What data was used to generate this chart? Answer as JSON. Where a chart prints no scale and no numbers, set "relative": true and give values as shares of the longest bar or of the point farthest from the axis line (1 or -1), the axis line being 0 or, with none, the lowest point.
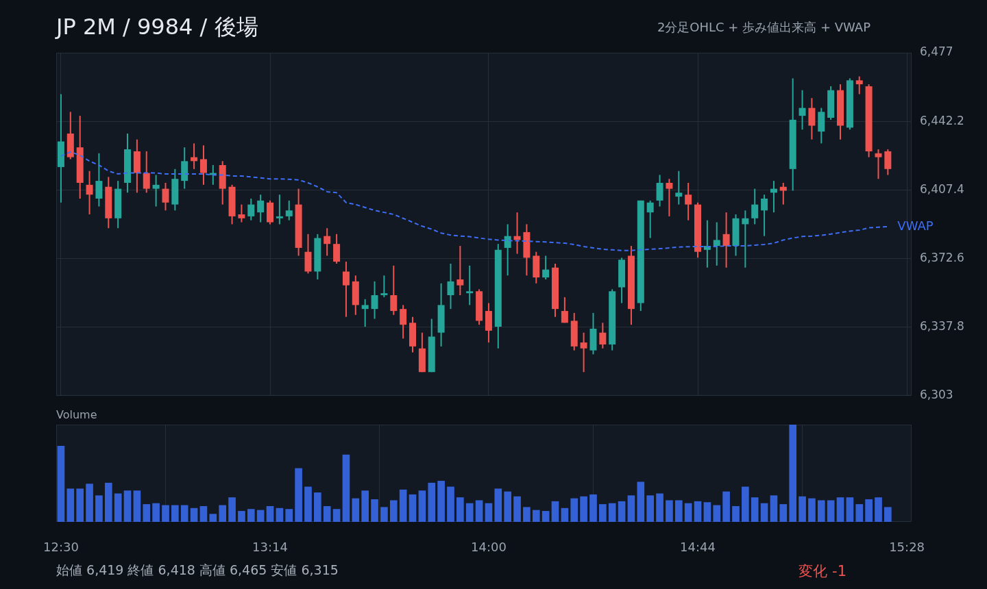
{
  "chart_data": [
    {
      "type": "candlestick",
      "title": "JP 2M / 9984 / 後場",
      "subtitle": "2分足OHLC + 歩み値出来高 + VWAP",
      "x": [
        12.5,
        12.5333,
        12.5667,
        12.6,
        12.6333,
        12.6667,
        12.7,
        12.7333,
        12.7667,
        12.8,
        12.8333,
        12.8667,
        12.9,
        12.9333,
        12.9667,
        13,
        13.0333,
        13.0667,
        13.1,
        13.1333,
        13.1667,
        13.2,
        13.2333,
        13.2667,
        13.3,
        13.3333,
        13.3667,
        13.4,
        13.4333,
        13.4667,
        13.5,
        13.5333,
        13.5667,
        13.6,
        13.6333,
        13.6667,
        13.7,
        13.7333,
        13.7667,
        13.8,
        13.8333,
        13.8667,
        13.9,
        13.9333,
        13.9667,
        14,
        14.0333,
        14.0667,
        14.1,
        14.1333,
        14.1667,
        14.2,
        14.2333,
        14.2667,
        14.3,
        14.3333,
        14.3667,
        14.4,
        14.4333,
        14.4667,
        14.5,
        14.5333,
        14.5667,
        14.6,
        14.6333,
        14.6667,
        14.7,
        14.7333,
        14.7667,
        14.8,
        14.8333,
        14.8667,
        14.9,
        14.9333,
        14.9667,
        15,
        15.0333,
        15.0667,
        15.1,
        15.1333,
        15.1667,
        15.2,
        15.2333,
        15.2667,
        15.3,
        15.3333,
        15.3667,
        15.4
      ],
      "ohlc": [
        [
          6419,
          6456,
          6401,
          6432
        ],
        [
          6436,
          6447,
          6423,
          6424
        ],
        [
          6429,
          6445,
          6403,
          6411
        ],
        [
          6410,
          6417,
          6395,
          6405
        ],
        [
          6403,
          6426,
          6399,
          6412
        ],
        [
          6409,
          6414,
          6388,
          6393
        ],
        [
          6393,
          6412,
          6388,
          6408
        ],
        [
          6411,
          6436,
          6406,
          6428
        ],
        [
          6427,
          6433,
          6406,
          6416
        ],
        [
          6416,
          6427,
          6406,
          6408
        ],
        [
          6408,
          6415,
          6399,
          6410
        ],
        [
          6408,
          6411,
          6397,
          6401
        ],
        [
          6400,
          6418,
          6397,
          6413
        ],
        [
          6412,
          6429,
          6408,
          6422
        ],
        [
          6424,
          6431,
          6418,
          6422
        ],
        [
          6423,
          6430,
          6410,
          6416
        ],
        [
          6415,
          6420,
          6410,
          6416
        ],
        [
          6420,
          6422,
          6400,
          6408
        ],
        [
          6409,
          6410,
          6390,
          6394
        ],
        [
          6395,
          6400,
          6391,
          6393
        ],
        [
          6394,
          6403,
          6392,
          6400
        ],
        [
          6396,
          6405,
          6391,
          6402
        ],
        [
          6401,
          6402,
          6390,
          6391
        ],
        [
          6393,
          6405,
          6390,
          6394
        ],
        [
          6394,
          6402,
          6392,
          6397
        ],
        [
          6400,
          6408,
          6374,
          6378
        ],
        [
          6376,
          6385,
          6365,
          6366
        ],
        [
          6366,
          6385,
          6362,
          6383
        ],
        [
          6384,
          6388,
          6374,
          6380
        ],
        [
          6380,
          6385,
          6370,
          6371
        ],
        [
          6366,
          6371,
          6343,
          6359
        ],
        [
          6361,
          6364,
          6344,
          6349
        ],
        [
          6347,
          6352,
          6338,
          6349
        ],
        [
          6347,
          6361,
          6342,
          6354
        ],
        [
          6354,
          6364,
          6353,
          6355
        ],
        [
          6354,
          6369,
          6344,
          6346
        ],
        [
          6347,
          6349,
          6332,
          6339
        ],
        [
          6340,
          6343,
          6325,
          6328
        ],
        [
          6327,
          6335,
          6315,
          6315
        ],
        [
          6315,
          6342,
          6315,
          6333
        ],
        [
          6335,
          6360,
          6328,
          6349
        ],
        [
          6354,
          6370,
          6347,
          6361
        ],
        [
          6362,
          6379,
          6354,
          6359
        ],
        [
          6355,
          6369,
          6349,
          6356
        ],
        [
          6356,
          6357,
          6339,
          6341
        ],
        [
          6346,
          6350,
          6330,
          6336
        ],
        [
          6338,
          6380,
          6327,
          6377
        ],
        [
          6378,
          6390,
          6364,
          6384
        ],
        [
          6384,
          6396,
          6375,
          6382
        ],
        [
          6386,
          6390,
          6364,
          6373
        ],
        [
          6374,
          6376,
          6360,
          6363
        ],
        [
          6363,
          6374,
          6362,
          6367
        ],
        [
          6368,
          6370,
          6343,
          6347
        ],
        [
          6346,
          6353,
          6340,
          6340
        ],
        [
          6341,
          6345,
          6326,
          6328
        ],
        [
          6330,
          6335,
          6315,
          6327
        ],
        [
          6326,
          6345,
          6324,
          6337
        ],
        [
          6335,
          6340,
          6327,
          6329
        ],
        [
          6329,
          6357,
          6326,
          6356
        ],
        [
          6358,
          6373,
          6350,
          6372
        ],
        [
          6374,
          6379,
          6339,
          6347
        ],
        [
          6350,
          6402,
          6346,
          6402
        ],
        [
          6396,
          6402,
          6383,
          6401
        ],
        [
          6402,
          6415,
          6399,
          6411
        ],
        [
          6411,
          6413,
          6394,
          6408
        ],
        [
          6404,
          6417,
          6400,
          6406
        ],
        [
          6405,
          6411,
          6392,
          6400
        ],
        [
          6400,
          6401,
          6373,
          6376
        ],
        [
          6377,
          6392,
          6368,
          6379
        ],
        [
          6379,
          6391,
          6369,
          6382
        ],
        [
          6385,
          6396,
          6368,
          6379
        ],
        [
          6379,
          6395,
          6374,
          6393
        ],
        [
          6390,
          6397,
          6368,
          6393
        ],
        [
          6393,
          6408,
          6390,
          6400
        ],
        [
          6397,
          6405,
          6384,
          6403
        ],
        [
          6406,
          6412,
          6396,
          6408
        ],
        [
          6409,
          6411,
          6400,
          6407
        ],
        [
          6418,
          6464,
          6407,
          6443
        ],
        [
          6445,
          6458,
          6438,
          6449
        ],
        [
          6449,
          6454,
          6433,
          6440
        ],
        [
          6437,
          6449,
          6431,
          6447
        ],
        [
          6444,
          6460,
          6443,
          6458
        ],
        [
          6458,
          6461,
          6433,
          6440
        ],
        [
          6439,
          6464,
          6438,
          6463
        ],
        [
          6463,
          6465,
          6456,
          6461
        ],
        [
          6460,
          6461,
          6424,
          6427
        ],
        [
          6426,
          6428,
          6413,
          6424
        ],
        [
          6427,
          6428,
          6415,
          6418
        ]
      ],
      "colors": [
        "#26a69a",
        "#ef5350",
        "#ef5350",
        "#ef5350",
        "#26a69a",
        "#ef5350",
        "#26a69a",
        "#26a69a",
        "#ef5350",
        "#ef5350",
        "#26a69a",
        "#ef5350",
        "#26a69a",
        "#26a69a",
        "#ef5350",
        "#ef5350",
        "#26a69a",
        "#ef5350",
        "#ef5350",
        "#ef5350",
        "#26a69a",
        "#26a69a",
        "#ef5350",
        "#26a69a",
        "#26a69a",
        "#ef5350",
        "#ef5350",
        "#26a69a",
        "#ef5350",
        "#ef5350",
        "#ef5350",
        "#ef5350",
        "#26a69a",
        "#26a69a",
        "#26a69a",
        "#ef5350",
        "#ef5350",
        "#ef5350",
        "#ef5350",
        "#26a69a",
        "#26a69a",
        "#26a69a",
        "#ef5350",
        "#26a69a",
        "#ef5350",
        "#ef5350",
        "#26a69a",
        "#26a69a",
        "#ef5350",
        "#ef5350",
        "#ef5350",
        "#26a69a",
        "#ef5350",
        "#ef5350",
        "#ef5350",
        "#ef5350",
        "#26a69a",
        "#ef5350",
        "#26a69a",
        "#26a69a",
        "#ef5350",
        "#26a69a",
        "#26a69a",
        "#26a69a",
        "#ef5350",
        "#26a69a",
        "#ef5350",
        "#ef5350",
        "#26a69a",
        "#26a69a",
        "#ef5350",
        "#26a69a",
        "#26a69a",
        "#26a69a",
        "#26a69a",
        "#26a69a",
        "#ef5350",
        "#26a69a",
        "#26a69a",
        "#ef5350",
        "#26a69a",
        "#26a69a",
        "#ef5350",
        "#26a69a",
        "#ef5350",
        "#ef5350",
        "#ef5350",
        "#ef5350"
      ],
      "series": [
        {
          "name": "VWAP",
          "type": "line",
          "color": "#3d6ef5",
          "line_style": "dashed",
          "values": [
            6424.6,
            6426.7,
            6425,
            6422,
            6420,
            6417,
            6415.5,
            6416,
            6416,
            6416,
            6416,
            6415.5,
            6415.5,
            6415.5,
            6415.5,
            6415.5,
            6415,
            6415,
            6414.5,
            6414.5,
            6414,
            6413.5,
            6413,
            6413,
            6412.8,
            6412.5,
            6411,
            6409,
            6406.5,
            6406,
            6401,
            6400,
            6398.5,
            6397,
            6396,
            6395,
            6393,
            6391,
            6389,
            6387.5,
            6385.5,
            6384.5,
            6384,
            6383.7,
            6383,
            6382.4,
            6382,
            6381.7,
            6381.6,
            6381.4,
            6381.2,
            6381,
            6380.7,
            6380.4,
            6379.7,
            6378.7,
            6378,
            6377.3,
            6377,
            6376.7,
            6376.7,
            6377,
            6377.3,
            6377.6,
            6378,
            6378.4,
            6378.6,
            6378.7,
            6378.7,
            6378.7,
            6379,
            6379,
            6379,
            6379.4,
            6379.7,
            6380.4,
            6382,
            6383,
            6383.8,
            6384,
            6384.4,
            6385,
            6385.8,
            6386.5,
            6387,
            6388.2,
            6388.5,
            6388.8
          ]
        }
      ],
      "xlim": [
        12.4833,
        15.4833
      ],
      "xticks": [
        {
          "value": 12.5,
          "label": null
        },
        {
          "value": 13.2333,
          "label": null
        },
        {
          "value": 14,
          "label": null
        },
        {
          "value": 14.7333,
          "label": null
        },
        {
          "value": 15.4667,
          "label": null
        }
      ],
      "ylim": [
        6303,
        6477
      ],
      "yticks": [
        {
          "value": 6303,
          "label": "6,303"
        },
        {
          "value": 6337.8,
          "label": "6,337.8"
        },
        {
          "value": 6372.6,
          "label": "6,372.6"
        },
        {
          "value": 6407.4,
          "label": "6,407.4"
        },
        {
          "value": 6442.2,
          "label": "6,442.2"
        },
        {
          "value": 6477,
          "label": "6,477"
        }
      ],
      "grid": true,
      "tick_labels": "y",
      "marker": "none"
    },
    {
      "type": "bar",
      "title": "Volume",
      "relative": true,
      "color": "#3461d6",
      "x": [
        12.5,
        12.5333,
        12.5667,
        12.6,
        12.6333,
        12.6667,
        12.7,
        12.7333,
        12.7667,
        12.8,
        12.8333,
        12.8667,
        12.9,
        12.9333,
        12.9667,
        13,
        13.0333,
        13.0667,
        13.1,
        13.1333,
        13.1667,
        13.2,
        13.2333,
        13.2667,
        13.3,
        13.3333,
        13.3667,
        13.4,
        13.4333,
        13.4667,
        13.5,
        13.5333,
        13.5667,
        13.6,
        13.6333,
        13.6667,
        13.7,
        13.7333,
        13.7667,
        13.8,
        13.8333,
        13.8667,
        13.9,
        13.9333,
        13.9667,
        14,
        14.0333,
        14.0667,
        14.1,
        14.1333,
        14.1667,
        14.2,
        14.2333,
        14.2667,
        14.3,
        14.3333,
        14.3667,
        14.4,
        14.4333,
        14.4667,
        14.5,
        14.5333,
        14.5667,
        14.6,
        14.6333,
        14.6667,
        14.7,
        14.7333,
        14.7667,
        14.8,
        14.8333,
        14.8667,
        14.9,
        14.9333,
        14.9667,
        15,
        15.0333,
        15.0667,
        15.1,
        15.1333,
        15.1667,
        15.2,
        15.2333,
        15.2667,
        15.3,
        15.3333,
        15.3667,
        15.4
      ],
      "values": [
        0.78,
        0.34,
        0.34,
        0.39,
        0.27,
        0.4,
        0.29,
        0.32,
        0.32,
        0.18,
        0.19,
        0.17,
        0.17,
        0.17,
        0.14,
        0.16,
        0.08,
        0.17,
        0.25,
        0.11,
        0.13,
        0.12,
        0.16,
        0.14,
        0.13,
        0.55,
        0.36,
        0.3,
        0.16,
        0.13,
        0.69,
        0.24,
        0.32,
        0.23,
        0.15,
        0.22,
        0.33,
        0.28,
        0.32,
        0.4,
        0.42,
        0.36,
        0.25,
        0.19,
        0.22,
        0.19,
        0.34,
        0.31,
        0.26,
        0.15,
        0.12,
        0.11,
        0.21,
        0.14,
        0.24,
        0.26,
        0.28,
        0.18,
        0.19,
        0.21,
        0.27,
        0.41,
        0.27,
        0.29,
        0.22,
        0.22,
        0.19,
        0.21,
        0.2,
        0.17,
        0.31,
        0.16,
        0.36,
        0.25,
        0.19,
        0.27,
        0.18,
        1,
        0.26,
        0.24,
        0.22,
        0.22,
        0.25,
        0.25,
        0.18,
        0.23,
        0.25,
        0.15
      ],
      "xlim": [
        12.4833,
        15.4833
      ],
      "xticks": [
        {
          "value": 12.5,
          "label": "12:30"
        },
        {
          "value": 13.2333,
          "label": "13:14"
        },
        {
          "value": 14,
          "label": "14:00"
        },
        {
          "value": 14.7333,
          "label": "14:44"
        },
        {
          "value": 15.4667,
          "label": "15:28"
        }
      ],
      "grid": "x",
      "tick_labels": "x",
      "annotations": [
        "始値 6,419 終値 6,418 高値 6,465 安値 6,315",
        "変化 -1"
      ]
    }
  ]
}
